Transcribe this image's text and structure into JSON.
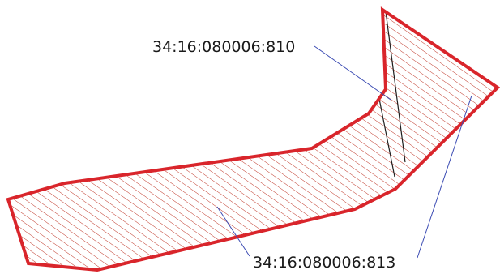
{
  "map": {
    "labels": {
      "parcel_810": "34:16:080006:810",
      "parcel_813": "34:16:080006:813"
    },
    "colors": {
      "boundary": "#d9252b",
      "hatch": "#c0392b",
      "inner_boundary": "#1f1f1f",
      "leader_line": "#3b4bb3",
      "background": "#ffffff"
    }
  }
}
